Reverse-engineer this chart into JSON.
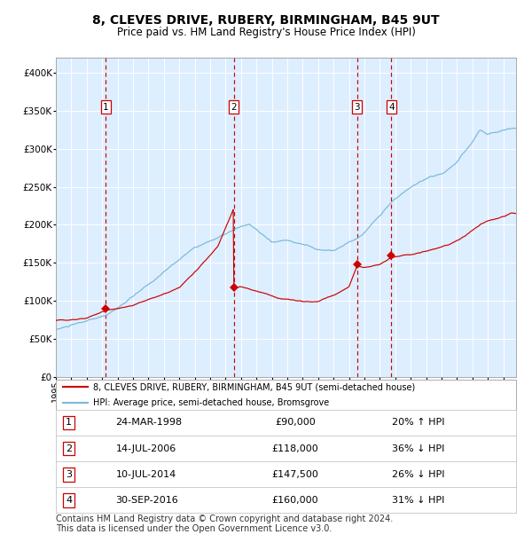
{
  "title": "8, CLEVES DRIVE, RUBERY, BIRMINGHAM, B45 9UT",
  "subtitle": "Price paid vs. HM Land Registry's House Price Index (HPI)",
  "title_fontsize": 10,
  "subtitle_fontsize": 8.5,
  "background_color": "#ffffff",
  "plot_bg_color": "#ddeeff",
  "grid_color": "#ffffff",
  "hpi_line_color": "#7ab8d8",
  "price_line_color": "#cc0000",
  "sale_marker_color": "#cc0000",
  "dashed_line_color": "#cc0000",
  "ylim": [
    0,
    420000
  ],
  "yticks": [
    0,
    50000,
    100000,
    150000,
    200000,
    250000,
    300000,
    350000,
    400000
  ],
  "xlim_start": 1995.0,
  "xlim_end": 2024.83,
  "sales": [
    {
      "num": 1,
      "date_dec": 1998.23,
      "price": 90000,
      "label": "24-MAR-1998",
      "pct": "20% ↑ HPI"
    },
    {
      "num": 2,
      "date_dec": 2006.54,
      "price": 118000,
      "label": "14-JUL-2006",
      "pct": "36% ↓ HPI"
    },
    {
      "num": 3,
      "date_dec": 2014.52,
      "price": 147500,
      "label": "10-JUL-2014",
      "pct": "26% ↓ HPI"
    },
    {
      "num": 4,
      "date_dec": 2016.75,
      "price": 160000,
      "label": "30-SEP-2016",
      "pct": "31% ↓ HPI"
    }
  ],
  "legend_entries": [
    "8, CLEVES DRIVE, RUBERY, BIRMINGHAM, B45 9UT (semi-detached house)",
    "HPI: Average price, semi-detached house, Bromsgrove"
  ],
  "footer_lines": [
    "Contains HM Land Registry data © Crown copyright and database right 2024.",
    "This data is licensed under the Open Government Licence v3.0."
  ],
  "footer_fontsize": 7.0,
  "table_fontsize": 8.0
}
